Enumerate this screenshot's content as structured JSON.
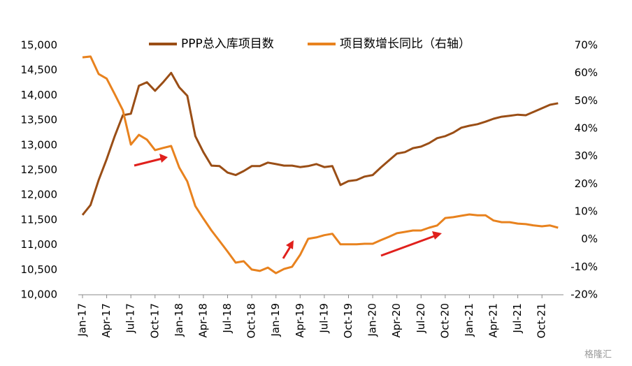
{
  "chart_data": {
    "type": "line",
    "categories": [
      "Jan-17",
      null,
      null,
      "Apr-17",
      null,
      null,
      "Jul-17",
      null,
      null,
      "Oct-17",
      null,
      null,
      "Jan-18",
      null,
      null,
      "Apr-18",
      null,
      null,
      "Jul-18",
      null,
      null,
      "Oct-18",
      null,
      null,
      "Jan-19",
      null,
      null,
      "Apr-19",
      null,
      null,
      "Jul-19",
      null,
      null,
      "Oct-19",
      null,
      null,
      "Jan-20",
      null,
      null,
      "Apr-20",
      null,
      null,
      "Jul-20",
      null,
      null,
      "Oct-20",
      null,
      null,
      "Jan-21",
      null,
      null,
      "Apr-21",
      null,
      null,
      "Jul-21",
      null,
      null,
      "Oct-21",
      null,
      null
    ],
    "series": [
      {
        "name": "PPP总入库项目数",
        "color": "#9a4e16",
        "axis": "y",
        "values": [
          11600,
          11800,
          12300,
          12720,
          13180,
          13600,
          13630,
          14190,
          14260,
          14090,
          14260,
          14450,
          14160,
          13990,
          13180,
          12860,
          12590,
          12580,
          12450,
          12400,
          12480,
          12580,
          12580,
          12650,
          12620,
          12590,
          12590,
          12560,
          12580,
          12620,
          12560,
          12580,
          12200,
          12280,
          12300,
          12370,
          12400,
          12550,
          12690,
          12830,
          12860,
          12940,
          12970,
          13040,
          13140,
          13180,
          13250,
          13350,
          13390,
          13420,
          13470,
          13530,
          13570,
          13590,
          13610,
          13600,
          13670,
          13740,
          13810,
          13840
        ]
      },
      {
        "name": "项目数增长同比（右轴）",
        "color": "#e8821e",
        "axis": "y2",
        "values": [
          65.7,
          66,
          59.7,
          58,
          52.4,
          46.6,
          34.2,
          37.7,
          36,
          32.2,
          33,
          33.7,
          25.9,
          20.9,
          12,
          7.5,
          3.2,
          -0.6,
          -4.4,
          -8.4,
          -7.9,
          -10.9,
          -11.4,
          -10.2,
          -12.2,
          -10.7,
          -9.9,
          -5.6,
          0.2,
          0.7,
          1.5,
          2,
          -1.8,
          -1.8,
          -1.8,
          -1.6,
          -1.6,
          -0.3,
          0.9,
          2.2,
          2.7,
          3.2,
          3.2,
          4.2,
          5,
          7.7,
          8,
          8.5,
          9,
          8.7,
          8.7,
          6.8,
          6.2,
          6.2,
          5.7,
          5.5,
          5,
          4.7,
          5,
          4.2
        ]
      }
    ],
    "ylim": [
      10000,
      15000
    ],
    "yticks": [
      {
        "value": 10000,
        "label": "10,000"
      },
      {
        "value": 10500,
        "label": "10,500"
      },
      {
        "value": 11000,
        "label": "11,000"
      },
      {
        "value": 11500,
        "label": "11,500"
      },
      {
        "value": 12000,
        "label": "12,000"
      },
      {
        "value": 12500,
        "label": "12,500"
      },
      {
        "value": 13000,
        "label": "13,000"
      },
      {
        "value": 13500,
        "label": "13,500"
      },
      {
        "value": 14000,
        "label": "14,000"
      },
      {
        "value": 14500,
        "label": "14,500"
      },
      {
        "value": 15000,
        "label": "15,000"
      }
    ],
    "y2lim": [
      -20,
      70
    ],
    "y2ticks": [
      {
        "value": -20,
        "label": "-20%"
      },
      {
        "value": -10,
        "label": "-10%"
      },
      {
        "value": 0,
        "label": "0%"
      },
      {
        "value": 10,
        "label": "10%"
      },
      {
        "value": 20,
        "label": "20%"
      },
      {
        "value": 30,
        "label": "30%"
      },
      {
        "value": 40,
        "label": "40%"
      },
      {
        "value": 50,
        "label": "50%"
      },
      {
        "value": 60,
        "label": "60%"
      },
      {
        "value": 70,
        "label": "70%"
      }
    ],
    "grid": false,
    "legend": "top"
  },
  "watermark": "格隆汇"
}
